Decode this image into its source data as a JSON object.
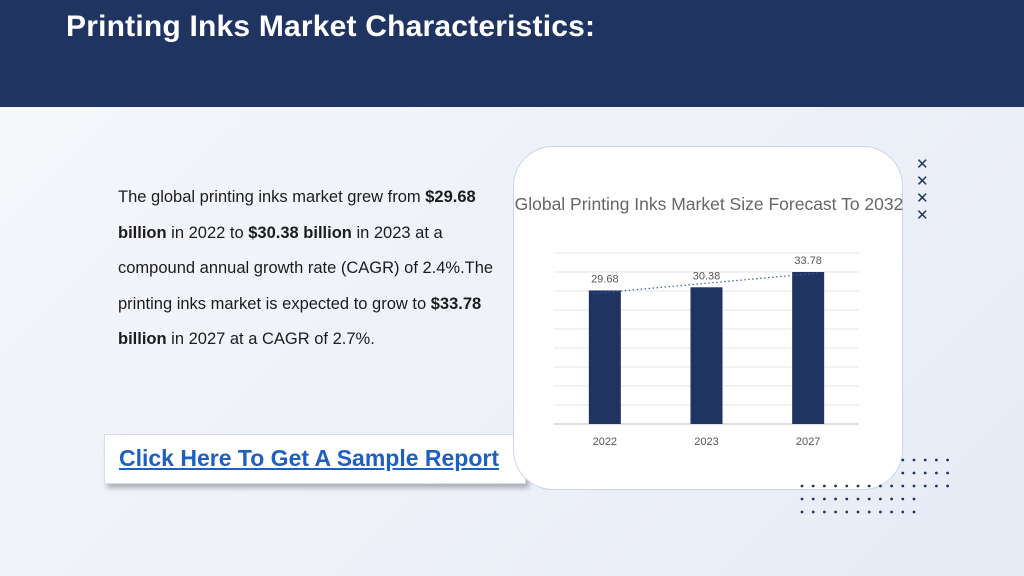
{
  "header": {
    "title": "Printing Inks Market Characteristics:"
  },
  "body": {
    "t1": "The global printing inks market grew from ",
    "b1": "$29.68 billion",
    "t2": " in 2022 to ",
    "b2": "$30.38 billion",
    "t3": " in 2023 at a compound annual growth rate (CAGR) of 2.4%.The printing inks market is expected to grow to ",
    "b3": "$33.78 billion",
    "t4": " in 2027 at a CAGR of 2.7%."
  },
  "cta": {
    "label": "Click Here To Get A Sample Report"
  },
  "colors": {
    "header_bg": "#1f3461",
    "bar": "#1f3461",
    "link": "#1f5fbf"
  },
  "chart_data": {
    "type": "bar",
    "title": "Global Printing Inks Market Size Forecast To 2032",
    "categories": [
      "2022",
      "2023",
      "2027"
    ],
    "values": [
      29.68,
      30.38,
      33.78
    ],
    "ylim": [
      0,
      38
    ],
    "grid": true,
    "trendline": "dotted linear",
    "xlabel": "",
    "ylabel": ""
  }
}
